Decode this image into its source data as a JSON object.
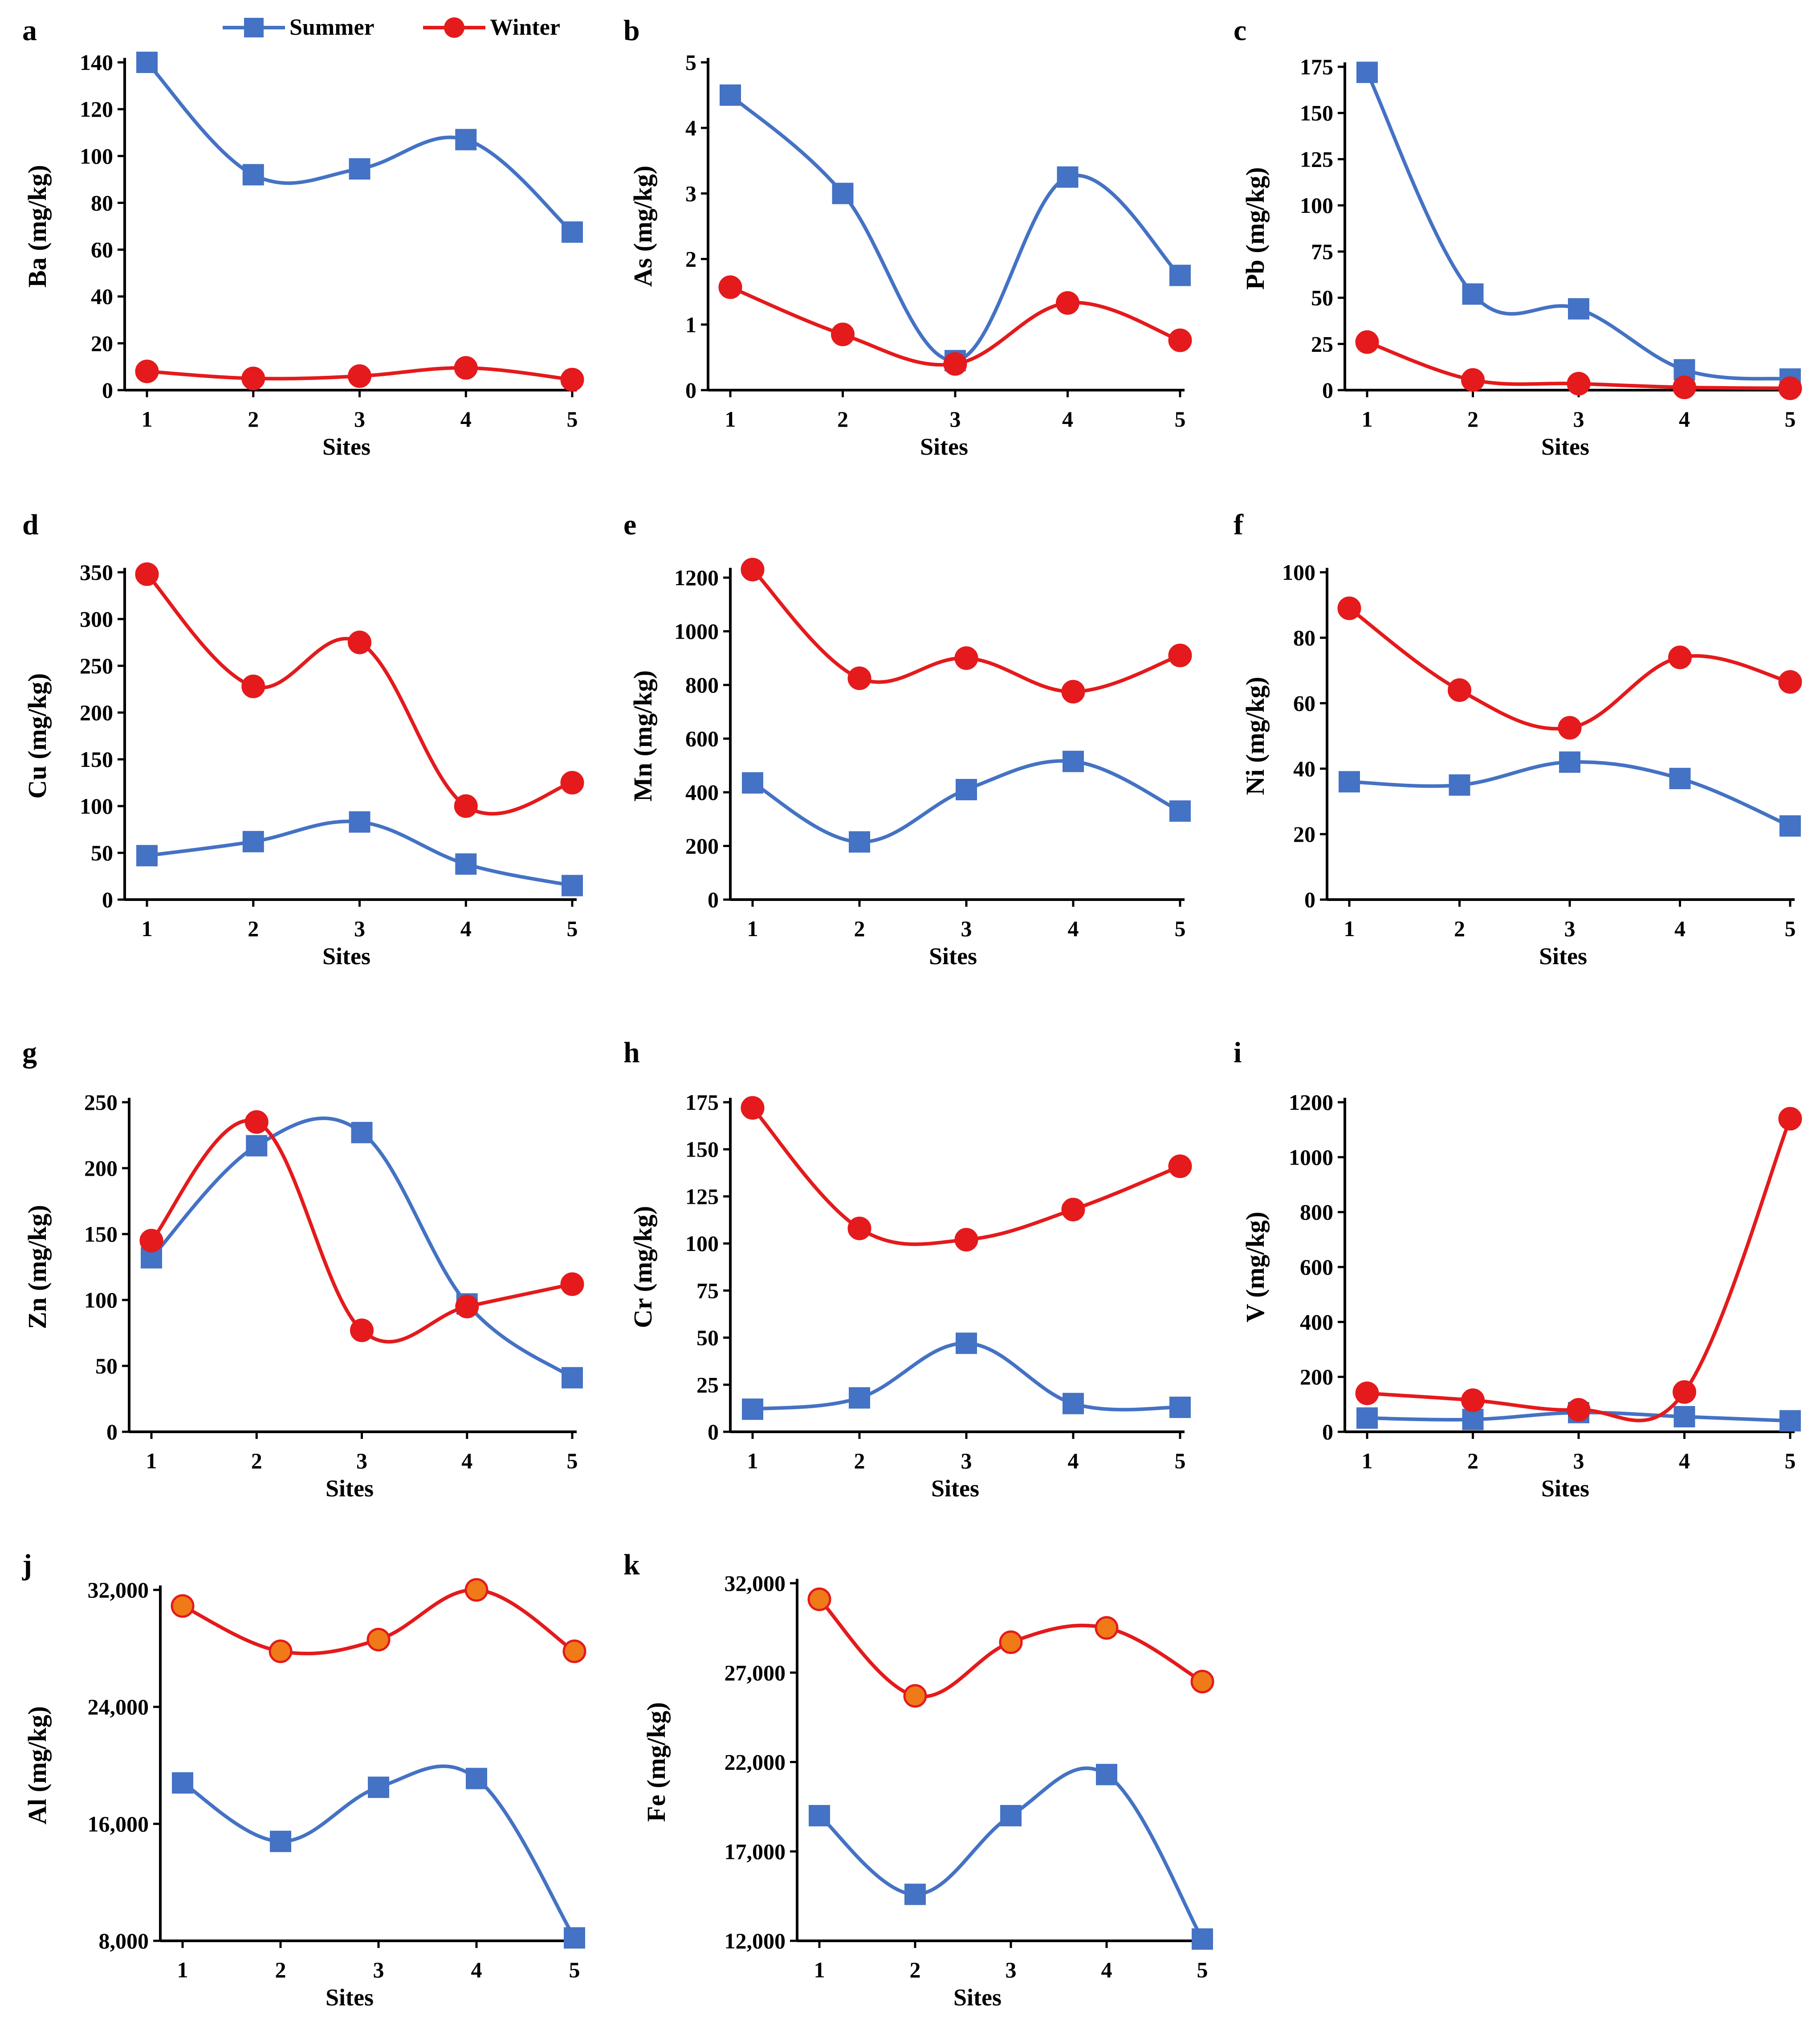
{
  "legend": {
    "series": [
      {
        "name": "Summer",
        "color": "#4472c4",
        "marker": "square"
      },
      {
        "name": "Winter",
        "color": "#e41a1c",
        "marker": "circle"
      }
    ]
  },
  "colors": {
    "summer": "#4472c4",
    "winter": "#e41a1c",
    "winter_marker_fill_jk": "#f07a18",
    "axis": "#000000"
  },
  "chart_data": [
    {
      "panel": "a",
      "type": "line",
      "ylabel": "Ba (mg/kg)",
      "xlabel": "Sites",
      "categories": [
        "1",
        "2",
        "3",
        "4",
        "5"
      ],
      "ylim": [
        0,
        140
      ],
      "ytick_values": [
        0,
        20,
        40,
        60,
        80,
        100,
        120,
        140
      ],
      "ytick_labels": [
        "0",
        "20",
        "40",
        "60",
        "80",
        "100",
        "120",
        "140"
      ],
      "series": [
        {
          "name": "Summer",
          "values": [
            140,
            92,
            94.5,
            107,
            67.5
          ]
        },
        {
          "name": "Winter",
          "values": [
            8,
            5,
            6,
            9.5,
            4.5
          ]
        }
      ]
    },
    {
      "panel": "b",
      "type": "line",
      "ylabel": "As (mg/kg)",
      "xlabel": "Sites",
      "categories": [
        "1",
        "2",
        "3",
        "4",
        "5"
      ],
      "ylim": [
        0,
        5
      ],
      "ytick_values": [
        0,
        1,
        2,
        3,
        4,
        5
      ],
      "ytick_labels": [
        "0",
        "1",
        "2",
        "3",
        "4",
        "5"
      ],
      "series": [
        {
          "name": "Summer",
          "values": [
            4.5,
            3.0,
            0.45,
            3.25,
            1.75
          ]
        },
        {
          "name": "Winter",
          "values": [
            1.57,
            0.85,
            0.4,
            1.33,
            0.76
          ]
        }
      ]
    },
    {
      "panel": "c",
      "type": "line",
      "ylabel": "Pb (mg/kg)",
      "xlabel": "Sites",
      "categories": [
        "1",
        "2",
        "3",
        "4",
        "5"
      ],
      "ylim": [
        0,
        175
      ],
      "ytick_values": [
        0,
        25,
        50,
        75,
        100,
        125,
        150,
        175
      ],
      "ytick_labels": [
        "0",
        "25",
        "50",
        "75",
        "100",
        "125",
        "150",
        "175"
      ],
      "series": [
        {
          "name": "Summer",
          "values": [
            172,
            52,
            44,
            11,
            6
          ]
        },
        {
          "name": "Winter",
          "values": [
            26,
            5.5,
            3.5,
            1.5,
            1
          ]
        }
      ]
    },
    {
      "panel": "d",
      "type": "line",
      "ylabel": "Cu (mg/kg)",
      "xlabel": "Sites",
      "categories": [
        "1",
        "2",
        "3",
        "4",
        "5"
      ],
      "ylim": [
        0,
        350
      ],
      "ytick_values": [
        0,
        50,
        100,
        150,
        200,
        250,
        300,
        350
      ],
      "ytick_labels": [
        "0",
        "50",
        "100",
        "150",
        "200",
        "250",
        "300",
        "350"
      ],
      "series": [
        {
          "name": "Summer",
          "values": [
            47,
            62,
            83,
            38,
            15
          ]
        },
        {
          "name": "Winter",
          "values": [
            348,
            228,
            275,
            100,
            125
          ]
        }
      ]
    },
    {
      "panel": "e",
      "type": "line",
      "ylabel": "Mn (mg/kg)",
      "xlabel": "Sites",
      "categories": [
        "1",
        "2",
        "3",
        "4",
        "5"
      ],
      "ylim": [
        0,
        1220
      ],
      "ytick_values": [
        0,
        200,
        400,
        600,
        800,
        1000,
        1200
      ],
      "ytick_labels": [
        "0",
        "200",
        "400",
        "600",
        "800",
        "1000",
        "1200"
      ],
      "series": [
        {
          "name": "Summer",
          "values": [
            435,
            215,
            410,
            515,
            330
          ]
        },
        {
          "name": "Winter",
          "values": [
            1230,
            825,
            900,
            775,
            910
          ]
        }
      ]
    },
    {
      "panel": "f",
      "type": "line",
      "ylabel": "Ni (mg/kg)",
      "xlabel": "Sites",
      "categories": [
        "1",
        "2",
        "3",
        "4",
        "5"
      ],
      "ylim": [
        0,
        100
      ],
      "ytick_values": [
        0,
        20,
        40,
        60,
        80,
        100
      ],
      "ytick_labels": [
        "0",
        "20",
        "40",
        "60",
        "80",
        "100"
      ],
      "series": [
        {
          "name": "Summer",
          "values": [
            36,
            35,
            42,
            37,
            22.5
          ]
        },
        {
          "name": "Winter",
          "values": [
            89,
            64,
            52.5,
            74,
            66.5
          ]
        }
      ]
    },
    {
      "panel": "g",
      "type": "line",
      "ylabel": "Zn (mg/kg)",
      "xlabel": "Sites",
      "categories": [
        "1",
        "2",
        "3",
        "4",
        "5"
      ],
      "ylim": [
        0,
        250
      ],
      "ytick_values": [
        0,
        50,
        100,
        150,
        200,
        250
      ],
      "ytick_labels": [
        "0",
        "50",
        "100",
        "150",
        "200",
        "250"
      ],
      "series": [
        {
          "name": "Summer",
          "values": [
            132,
            217,
            227,
            97,
            41
          ]
        },
        {
          "name": "Winter",
          "values": [
            145,
            235,
            77,
            95,
            112
          ]
        }
      ]
    },
    {
      "panel": "h",
      "type": "line",
      "ylabel": "Cr (mg/kg)",
      "xlabel": "Sites",
      "categories": [
        "1",
        "2",
        "3",
        "4",
        "5"
      ],
      "ylim": [
        0,
        175
      ],
      "ytick_values": [
        0,
        25,
        50,
        75,
        100,
        125,
        150,
        175
      ],
      "ytick_labels": [
        "0",
        "25",
        "50",
        "75",
        "100",
        "125",
        "150",
        "175"
      ],
      "series": [
        {
          "name": "Summer",
          "values": [
            12,
            18,
            47,
            15,
            13
          ]
        },
        {
          "name": "Winter",
          "values": [
            172,
            108,
            102,
            118,
            141
          ]
        }
      ]
    },
    {
      "panel": "i",
      "type": "line",
      "ylabel": "V (mg/kg)",
      "xlabel": "Sites",
      "categories": [
        "1",
        "2",
        "3",
        "4",
        "5"
      ],
      "ylim": [
        0,
        1200
      ],
      "ytick_values": [
        0,
        200,
        400,
        600,
        800,
        1000,
        1200
      ],
      "ytick_labels": [
        "0",
        "200",
        "400",
        "600",
        "800",
        "1000",
        "1200"
      ],
      "series": [
        {
          "name": "Summer",
          "values": [
            50,
            45,
            70,
            55,
            40
          ]
        },
        {
          "name": "Winter",
          "values": [
            140,
            115,
            80,
            145,
            1140
          ]
        }
      ]
    },
    {
      "panel": "j",
      "type": "line",
      "ylabel": "Al (mg/kg)",
      "xlabel": "Sites",
      "categories": [
        "1",
        "2",
        "3",
        "4",
        "5"
      ],
      "ylim": [
        8000,
        32000
      ],
      "ytick_values": [
        8000,
        16000,
        24000,
        32000
      ],
      "ytick_labels": [
        "8,000",
        "16,000",
        "24,000",
        "32,000"
      ],
      "series": [
        {
          "name": "Summer",
          "values": [
            18800,
            14800,
            18500,
            19100,
            8200
          ]
        },
        {
          "name": "Winter",
          "values": [
            30900,
            27800,
            28600,
            32000,
            27800
          ]
        }
      ]
    },
    {
      "panel": "k",
      "type": "line",
      "ylabel": "Fe (mg/kg)",
      "xlabel": "Sites",
      "categories": [
        "1",
        "2",
        "3",
        "4",
        "5"
      ],
      "ylim": [
        12000,
        32000
      ],
      "ytick_values": [
        12000,
        17000,
        22000,
        27000,
        32000
      ],
      "ytick_labels": [
        "12,000",
        "17,000",
        "22,000",
        "27,000",
        "32,000"
      ],
      "series": [
        {
          "name": "Summer",
          "values": [
            19000,
            14600,
            19000,
            21300,
            12100
          ]
        },
        {
          "name": "Winter",
          "values": [
            31100,
            25700,
            28700,
            29500,
            26500
          ]
        }
      ]
    }
  ]
}
